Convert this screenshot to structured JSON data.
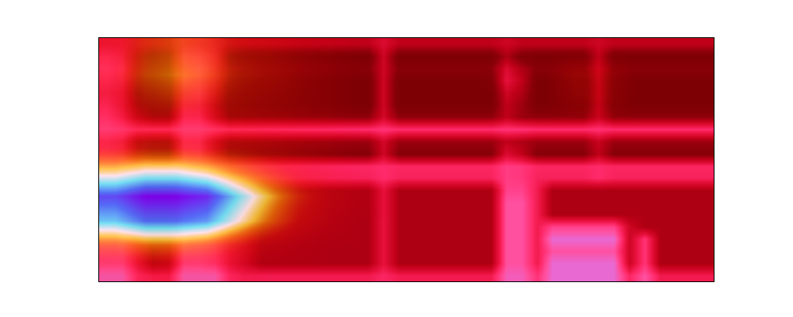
{
  "chart_data": {
    "type": "heatmap",
    "tick_labels": false,
    "zlim": [
      0,
      1
    ],
    "z": [
      [
        0.8,
        0.8,
        0.6,
        0.55,
        0.55,
        0.8,
        0.8,
        0.8,
        0.6,
        0.55,
        0.55,
        0.55,
        0.55,
        0.55,
        0.55,
        0.55,
        0.55,
        0.55,
        0.6,
        0.55,
        0.55,
        0.55,
        0.55,
        0.55,
        0.55,
        0.55,
        0.8,
        0.8,
        0.65,
        0.85,
        0.85,
        0.85,
        0.85,
        0.85,
        0.6,
        0.75,
        0.55,
        0.55,
        0.55,
        0.55
      ],
      [
        0.7,
        0.7,
        0.5,
        0.3,
        0.35,
        0.7,
        0.7,
        0.65,
        0.5,
        0.4,
        0.3,
        0.3,
        0.3,
        0.3,
        0.3,
        0.3,
        0.3,
        0.3,
        0.5,
        0.3,
        0.3,
        0.3,
        0.3,
        0.3,
        0.3,
        0.3,
        0.75,
        0.75,
        0.55,
        0.85,
        0.85,
        0.85,
        0.85,
        0.85,
        0.4,
        0.65,
        0.3,
        0.3,
        0.3,
        0.3
      ],
      [
        0.7,
        0.7,
        0.5,
        0.3,
        0.35,
        0.7,
        0.7,
        0.65,
        0.5,
        0.4,
        0.3,
        0.3,
        0.3,
        0.3,
        0.3,
        0.3,
        0.3,
        0.3,
        0.5,
        0.3,
        0.3,
        0.3,
        0.3,
        0.3,
        0.3,
        0.3,
        0.75,
        0.75,
        0.55,
        0.75,
        0.75,
        0.75,
        0.75,
        0.75,
        0.4,
        0.65,
        0.3,
        0.3,
        0.3,
        0.3
      ],
      [
        0.7,
        0.7,
        0.5,
        0.3,
        0.35,
        0.7,
        0.7,
        0.65,
        0.5,
        0.4,
        0.3,
        0.3,
        0.3,
        0.3,
        0.3,
        0.3,
        0.3,
        0.3,
        0.5,
        0.3,
        0.3,
        0.3,
        0.3,
        0.3,
        0.3,
        0.3,
        0.75,
        0.75,
        0.55,
        0.85,
        0.85,
        0.85,
        0.85,
        0.85,
        0.4,
        0.65,
        0.3,
        0.3,
        0.3,
        0.3
      ],
      [
        0.7,
        0.7,
        0.5,
        0.3,
        0.35,
        0.7,
        0.7,
        0.65,
        0.5,
        0.4,
        0.3,
        0.3,
        0.3,
        0.3,
        0.3,
        0.3,
        0.3,
        0.3,
        0.5,
        0.3,
        0.3,
        0.3,
        0.3,
        0.3,
        0.3,
        0.3,
        0.75,
        0.75,
        0.55,
        0.7,
        0.7,
        0.7,
        0.7,
        0.7,
        0.4,
        0.3,
        0.3,
        0.3,
        0.3,
        0.3
      ],
      [
        0.7,
        0.7,
        0.5,
        0.3,
        0.35,
        0.7,
        0.7,
        0.65,
        0.5,
        0.4,
        0.3,
        0.3,
        0.3,
        0.3,
        0.3,
        0.3,
        0.3,
        0.3,
        0.5,
        0.3,
        0.3,
        0.3,
        0.3,
        0.3,
        0.3,
        0.3,
        0.75,
        0.75,
        0.55,
        0.3,
        0.3,
        0.3,
        0.3,
        0.3,
        0.3,
        0.3,
        0.3,
        0.3,
        0.3,
        0.3
      ],
      [
        0.7,
        0.7,
        0.5,
        0.3,
        0.35,
        0.7,
        0.7,
        0.65,
        0.5,
        0.4,
        0.3,
        0.3,
        0.3,
        0.3,
        0.3,
        0.3,
        0.3,
        0.3,
        0.5,
        0.3,
        0.3,
        0.3,
        0.3,
        0.3,
        0.3,
        0.3,
        0.75,
        0.75,
        0.55,
        0.3,
        0.3,
        0.3,
        0.3,
        0.3,
        0.3,
        0.3,
        0.3,
        0.3,
        0.3,
        0.3
      ],
      [
        0.7,
        0.7,
        0.5,
        0.3,
        0.35,
        0.7,
        0.7,
        0.65,
        0.5,
        0.4,
        0.3,
        0.3,
        0.3,
        0.3,
        0.3,
        0.3,
        0.3,
        0.3,
        0.5,
        0.3,
        0.3,
        0.3,
        0.3,
        0.3,
        0.3,
        0.3,
        0.7,
        0.7,
        0.55,
        0.3,
        0.3,
        0.3,
        0.3,
        0.3,
        0.3,
        0.3,
        0.3,
        0.3,
        0.3,
        0.3
      ],
      [
        0.7,
        0.7,
        0.62,
        0.58,
        0.58,
        0.7,
        0.7,
        0.65,
        0.58,
        0.58,
        0.58,
        0.58,
        0.58,
        0.58,
        0.58,
        0.58,
        0.58,
        0.58,
        0.62,
        0.58,
        0.58,
        0.58,
        0.58,
        0.58,
        0.58,
        0.58,
        0.68,
        0.66,
        0.58,
        0.58,
        0.58,
        0.58,
        0.62,
        0.58,
        0.58,
        0.58,
        0.58,
        0.58,
        0.58,
        0.58
      ],
      [
        0.7,
        0.7,
        0.62,
        0.6,
        0.6,
        0.7,
        0.7,
        0.65,
        0.6,
        0.6,
        0.6,
        0.6,
        0.6,
        0.6,
        0.6,
        0.6,
        0.6,
        0.6,
        0.62,
        0.6,
        0.6,
        0.6,
        0.6,
        0.6,
        0.6,
        0.6,
        0.68,
        0.66,
        0.6,
        0.6,
        0.6,
        0.6,
        0.62,
        0.6,
        0.6,
        0.6,
        0.6,
        0.6,
        0.6,
        0.6
      ],
      [
        0.6,
        0.55,
        0.3,
        0.2,
        0.2,
        0.6,
        0.6,
        0.4,
        0.2,
        0.18,
        0.18,
        0.18,
        0.18,
        0.18,
        0.18,
        0.18,
        0.18,
        0.18,
        0.4,
        0.18,
        0.18,
        0.18,
        0.18,
        0.18,
        0.18,
        0.18,
        0.45,
        0.35,
        0.18,
        0.18,
        0.18,
        0.18,
        0.35,
        0.18,
        0.18,
        0.18,
        0.18,
        0.18,
        0.18,
        0.18
      ],
      [
        0.6,
        0.55,
        0.3,
        0.25,
        0.25,
        0.6,
        0.6,
        0.4,
        0.25,
        0.25,
        0.25,
        0.25,
        0.25,
        0.25,
        0.25,
        0.25,
        0.25,
        0.25,
        0.42,
        0.25,
        0.25,
        0.25,
        0.25,
        0.25,
        0.25,
        0.25,
        0.35,
        0.3,
        0.25,
        0.25,
        0.25,
        0.25,
        0.38,
        0.25,
        0.25,
        0.25,
        0.25,
        0.25,
        0.25,
        0.25
      ],
      [
        0.7,
        0.68,
        0.62,
        0.62,
        0.62,
        0.7,
        0.7,
        0.66,
        0.62,
        0.62,
        0.62,
        0.62,
        0.62,
        0.62,
        0.62,
        0.62,
        0.62,
        0.62,
        0.65,
        0.62,
        0.62,
        0.62,
        0.62,
        0.62,
        0.62,
        0.62,
        0.65,
        0.64,
        0.62,
        0.62,
        0.62,
        0.62,
        0.64,
        0.62,
        0.62,
        0.62,
        0.62,
        0.62,
        0.62,
        0.62
      ],
      [
        0.65,
        0.55,
        0.35,
        0.25,
        0.25,
        0.6,
        0.6,
        0.4,
        0.22,
        0.22,
        0.22,
        0.22,
        0.22,
        0.22,
        0.22,
        0.22,
        0.22,
        0.22,
        0.42,
        0.22,
        0.22,
        0.22,
        0.22,
        0.22,
        0.22,
        0.22,
        0.35,
        0.25,
        0.22,
        0.22,
        0.22,
        0.22,
        0.38,
        0.22,
        0.22,
        0.22,
        0.22,
        0.22,
        0.22,
        0.22
      ],
      [
        0.6,
        0.5,
        0.25,
        0.15,
        0.15,
        0.55,
        0.55,
        0.35,
        0.15,
        0.12,
        0.12,
        0.12,
        0.12,
        0.12,
        0.12,
        0.12,
        0.12,
        0.12,
        0.4,
        0.12,
        0.12,
        0.12,
        0.12,
        0.12,
        0.12,
        0.12,
        0.35,
        0.25,
        0.12,
        0.12,
        0.12,
        0.12,
        0.35,
        0.12,
        0.12,
        0.12,
        0.12,
        0.12,
        0.12,
        0.12
      ],
      [
        0.55,
        0.5,
        0.2,
        0.12,
        0.15,
        0.55,
        0.6,
        0.4,
        0.15,
        0.12,
        0.12,
        0.12,
        0.12,
        0.12,
        0.12,
        0.12,
        0.12,
        0.12,
        0.4,
        0.12,
        0.12,
        0.12,
        0.12,
        0.12,
        0.12,
        0.12,
        0.4,
        0.3,
        0.12,
        0.12,
        0.12,
        0.12,
        0.35,
        0.12,
        0.12,
        0.12,
        0.12,
        0.12,
        0.12,
        0.12
      ],
      [
        0.6,
        0.55,
        0.25,
        0.12,
        0.15,
        0.6,
        0.6,
        0.45,
        0.2,
        0.12,
        0.12,
        0.12,
        0.12,
        0.12,
        0.12,
        0.12,
        0.12,
        0.12,
        0.4,
        0.12,
        0.12,
        0.12,
        0.12,
        0.12,
        0.12,
        0.15,
        0.5,
        0.35,
        0.12,
        0.12,
        0.12,
        0.12,
        0.35,
        0.12,
        0.12,
        0.12,
        0.12,
        0.12,
        0.12,
        0.12
      ],
      [
        0.65,
        0.6,
        0.3,
        0.18,
        0.2,
        0.6,
        0.65,
        0.5,
        0.25,
        0.2,
        0.18,
        0.18,
        0.18,
        0.18,
        0.18,
        0.18,
        0.18,
        0.18,
        0.4,
        0.18,
        0.18,
        0.18,
        0.18,
        0.18,
        0.18,
        0.2,
        0.45,
        0.3,
        0.18,
        0.18,
        0.18,
        0.18,
        0.38,
        0.18,
        0.18,
        0.18,
        0.18,
        0.18,
        0.18,
        0.18
      ],
      [
        0.6,
        0.55,
        0.3,
        0.15,
        0.2,
        0.6,
        0.6,
        0.5,
        0.2,
        0.12,
        0.12,
        0.12,
        0.12,
        0.12,
        0.12,
        0.12,
        0.12,
        0.12,
        0.4,
        0.12,
        0.12,
        0.12,
        0.12,
        0.12,
        0.12,
        0.12,
        0.3,
        0.15,
        0.12,
        0.12,
        0.12,
        0.12,
        0.35,
        0.12,
        0.12,
        0.12,
        0.12,
        0.12,
        0.12,
        0.12
      ],
      [
        0.5,
        0.5,
        0.4,
        0.35,
        0.35,
        0.5,
        0.5,
        0.45,
        0.35,
        0.35,
        0.35,
        0.35,
        0.35,
        0.35,
        0.35,
        0.35,
        0.35,
        0.35,
        0.45,
        0.35,
        0.35,
        0.35,
        0.35,
        0.35,
        0.35,
        0.35,
        0.4,
        0.35,
        0.35,
        0.35,
        0.35,
        0.35,
        0.4,
        0.35,
        0.35,
        0.35,
        0.35,
        0.35,
        0.35,
        0.35
      ]
    ],
    "saliency": [
      [
        0.1,
        0.1,
        0.1,
        0.1,
        0.05,
        0,
        0,
        0,
        0,
        0,
        0,
        0,
        0,
        0,
        0,
        0,
        0,
        0,
        0,
        0
      ],
      [
        0.35,
        0.4,
        0.4,
        0.35,
        0.25,
        0.12,
        0.05,
        0,
        0,
        0,
        0,
        0,
        0,
        0,
        0,
        0,
        0,
        0,
        0,
        0
      ],
      [
        0.75,
        0.85,
        0.85,
        0.8,
        0.6,
        0.4,
        0.2,
        0.08,
        0,
        0,
        0,
        0,
        0,
        0,
        0,
        0,
        0,
        0,
        0,
        0
      ],
      [
        0.9,
        1.0,
        1.0,
        0.95,
        0.72,
        0.5,
        0.28,
        0.12,
        0.05,
        0,
        0,
        0,
        0,
        0,
        0,
        0,
        0,
        0,
        0,
        0
      ],
      [
        0.55,
        0.62,
        0.62,
        0.55,
        0.42,
        0.3,
        0.18,
        0.08,
        0,
        0,
        0,
        0,
        0,
        0,
        0,
        0,
        0,
        0,
        0,
        0
      ],
      [
        0.22,
        0.25,
        0.25,
        0.22,
        0.2,
        0.15,
        0.1,
        0.05,
        0,
        0,
        0,
        0,
        0,
        0,
        0,
        0,
        0,
        0,
        0,
        0
      ],
      [
        0.12,
        0.15,
        0.15,
        0.15,
        0.15,
        0.12,
        0.08,
        0.05,
        0,
        0,
        0,
        0,
        0,
        0,
        0,
        0,
        0,
        0,
        0,
        0
      ],
      [
        0.15,
        0.25,
        0.3,
        0.25,
        0.2,
        0.15,
        0.1,
        0.05,
        0,
        0,
        0,
        0,
        0,
        0,
        0,
        0.1,
        0.1,
        0,
        0,
        0
      ],
      [
        0.2,
        0.35,
        0.42,
        0.35,
        0.25,
        0.2,
        0.12,
        0.05,
        0,
        0,
        0,
        0,
        0,
        0,
        0,
        0.15,
        0.12,
        0,
        0,
        0
      ],
      [
        0.18,
        0.3,
        0.35,
        0.3,
        0.22,
        0.18,
        0.1,
        0.05,
        0,
        0,
        0,
        0,
        0,
        0,
        0,
        0,
        0,
        0,
        0,
        0
      ]
    ]
  }
}
